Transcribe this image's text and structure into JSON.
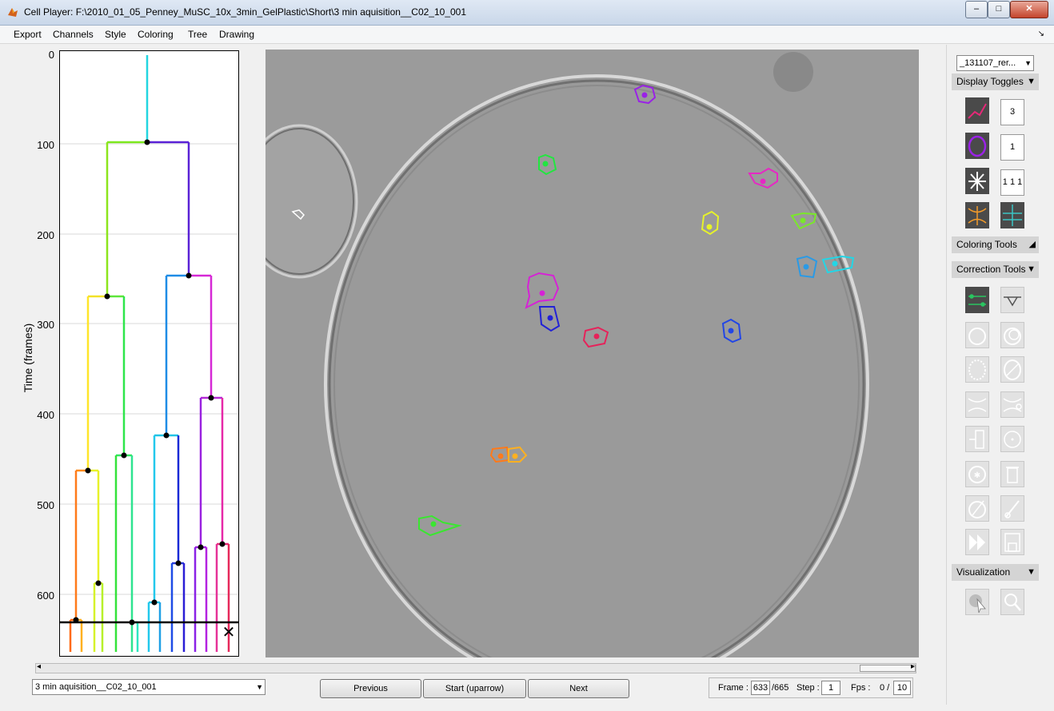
{
  "window": {
    "title": "Cell Player: F:\\2010_01_05_Penney_MuSC_10x_3min_GelPlastic\\Short\\3 min aquisition__C02_10_001",
    "minimize_glyph": "–",
    "maximize_glyph": "□",
    "close_glyph": "✕"
  },
  "menu": {
    "items": [
      "Export",
      "Channels",
      "Style",
      "Coloring",
      "Tree",
      "Drawing"
    ],
    "undock_glyph": "↘"
  },
  "tree": {
    "ylabel": "Time (frames)",
    "yticks": [
      "0",
      "100",
      "200",
      "300",
      "400",
      "500",
      "600"
    ],
    "ytick_values": [
      0,
      100,
      200,
      300,
      400,
      500,
      600
    ],
    "ymax": 665,
    "current_frame_marker": "✕"
  },
  "right_panel": {
    "dataset_select": "_131107_rer...",
    "sections": {
      "display_toggles": "Display Toggles",
      "coloring_tools": "Coloring Tools",
      "correction_tools": "Correction Tools",
      "visualization": "Visualization"
    },
    "toggle_values": [
      "3",
      "1",
      "1 1 1"
    ],
    "expanded_arrow": "▼",
    "collapsed_arrow": "◢"
  },
  "bottom": {
    "file_select": "3 min aquisition__C02_10_001",
    "previous_label": "Previous",
    "start_label": "Start (uparrow)",
    "next_label": "Next",
    "frame_label": "Frame :",
    "frame_value": "633",
    "frame_total": "/665",
    "step_label": "Step :",
    "step_value": "1",
    "fps_label": "Fps :",
    "fps_current": "0 /",
    "fps_value": "10",
    "scroll_left": "◂",
    "scroll_right": "▸"
  },
  "colors": {
    "titlebar": "#c9d7e9",
    "image_bg": "#9a9a9a",
    "tool_dark": "#4a4a4a",
    "section_header": "#d4d4d4"
  }
}
